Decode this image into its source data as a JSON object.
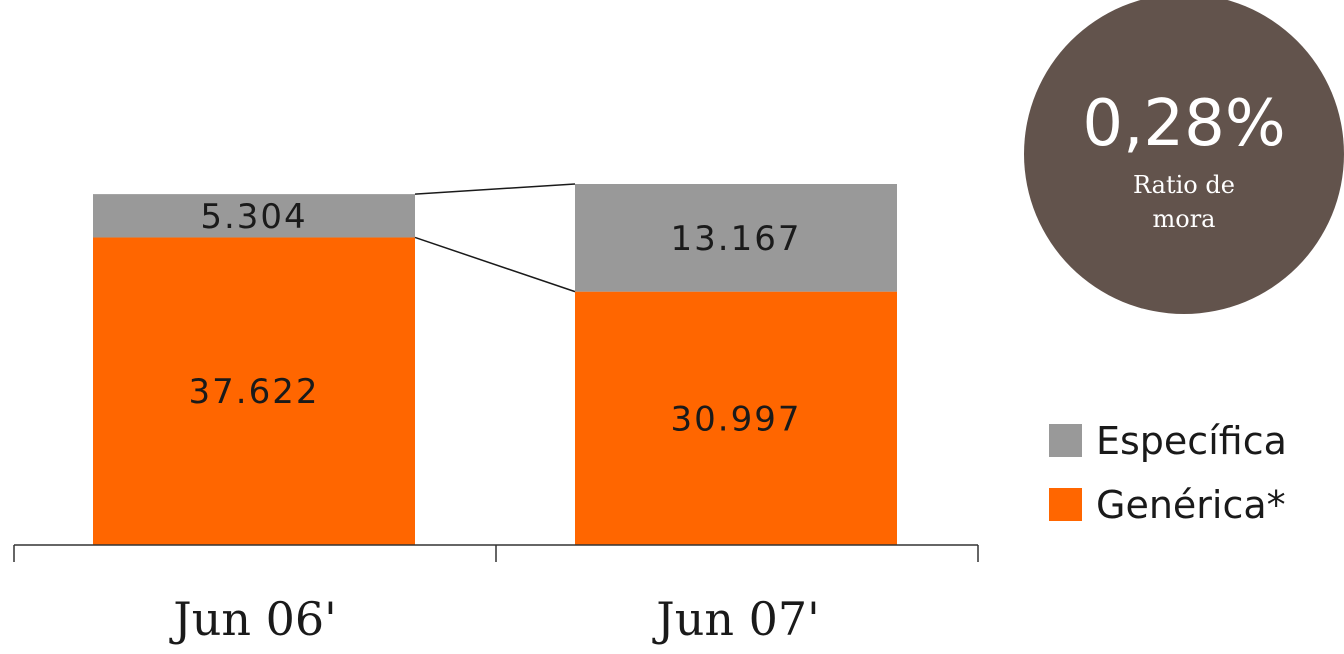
{
  "chart_data": {
    "type": "bar",
    "stacked": true,
    "categories": [
      "Jun 06'",
      "Jun 07'"
    ],
    "series": [
      {
        "name": "Genérica*",
        "values": [
          37622,
          30997
        ],
        "labels": [
          "37.622",
          "30.997"
        ],
        "color": "#ff6600"
      },
      {
        "name": "Específica",
        "values": [
          5304,
          13167
        ],
        "labels": [
          "5.304",
          "13.167"
        ],
        "color": "#999999"
      }
    ],
    "ylim": [
      0,
      44164
    ],
    "grid": false,
    "legend_position": "right",
    "title": "",
    "xlabel": "",
    "ylabel": ""
  },
  "badge": {
    "value": "0,28%",
    "label_lines": [
      "Ratio de",
      "mora"
    ],
    "color": "#62534c"
  },
  "legend": {
    "items": [
      {
        "label": "Específica",
        "color": "#999999"
      },
      {
        "label": "Genérica*",
        "color": "#ff6600"
      }
    ]
  },
  "colors": {
    "axis": "#333333",
    "connector": "#1a1a1a"
  }
}
